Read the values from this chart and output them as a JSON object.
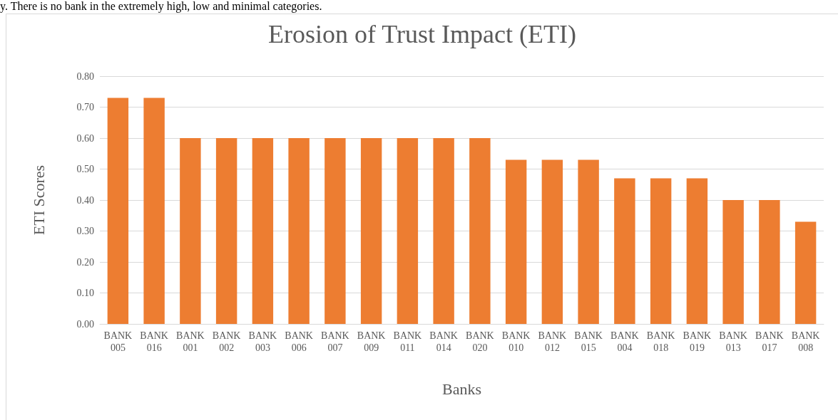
{
  "chart_data": {
    "type": "bar",
    "title": "Erosion of Trust Impact (ETI)",
    "xlabel": "Banks",
    "ylabel": "ETI Scores",
    "annotations": [
      "y.  There is no bank in the extremely high, low and minimal categories."
    ],
    "categories": [
      "BANK 005",
      "BANK 016",
      "BANK 001",
      "BANK 002",
      "BANK 003",
      "BANK 006",
      "BANK 007",
      "BANK 009",
      "BANK 011",
      "BANK 014",
      "BANK 020",
      "BANK 010",
      "BANK 012",
      "BANK 015",
      "BANK 004",
      "BANK 018",
      "BANK 019",
      "BANK 013",
      "BANK 017",
      "BANK 008"
    ],
    "values": [
      0.73,
      0.73,
      0.6,
      0.6,
      0.6,
      0.6,
      0.6,
      0.6,
      0.6,
      0.6,
      0.6,
      0.53,
      0.53,
      0.53,
      0.47,
      0.47,
      0.47,
      0.4,
      0.4,
      0.33
    ],
    "color": "#ed7d31",
    "ylim": [
      0,
      0.8
    ],
    "yticks": [
      {
        "value": 0,
        "label": "0.00"
      },
      {
        "value": 0.1,
        "label": "0.10"
      },
      {
        "value": 0.2,
        "label": "0.20"
      },
      {
        "value": 0.3,
        "label": "0.30"
      },
      {
        "value": 0.4,
        "label": "0.40"
      },
      {
        "value": 0.5,
        "label": "0.50"
      },
      {
        "value": 0.6,
        "label": "0.60"
      },
      {
        "value": 0.7,
        "label": "0.70"
      },
      {
        "value": 0.8,
        "label": "0.80"
      }
    ],
    "grid": "y"
  }
}
